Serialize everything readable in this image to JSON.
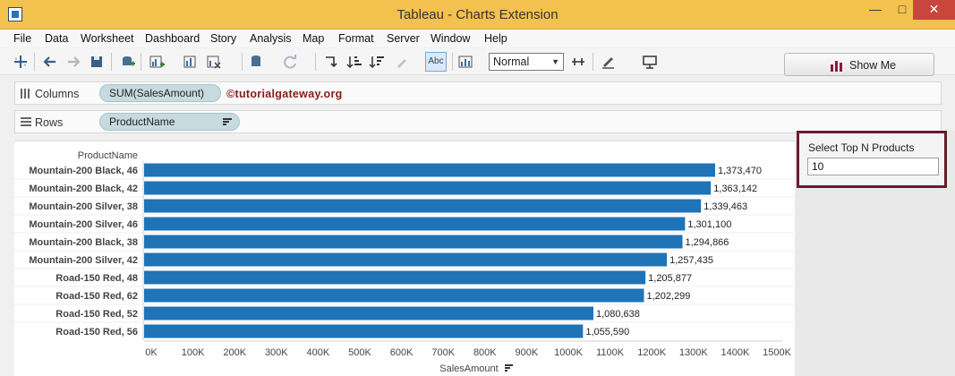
{
  "window": {
    "title": "Tableau - Charts Extension",
    "controls": {
      "minimize": "—",
      "maximize": "□",
      "close": "✕"
    }
  },
  "menu": [
    "File",
    "Data",
    "Worksheet",
    "Dashboard",
    "Story",
    "Analysis",
    "Map",
    "Format",
    "Server",
    "Window",
    "Help"
  ],
  "toolbar": {
    "abc_label": "Abc",
    "fit_value": "Normal",
    "show_me_label": "Show Me"
  },
  "shelves": {
    "columns_label": "Columns",
    "columns_pill": "SUM(SalesAmount)",
    "rows_label": "Rows",
    "rows_pill": "ProductName",
    "watermark": "©tutorialgateway.org"
  },
  "parameter": {
    "title": "Select Top N Products",
    "value": "10"
  },
  "colors": {
    "bar": "#1f73b7",
    "titlebar": "#f2c14e",
    "param_border": "#6b1b2b"
  },
  "chart_data": {
    "type": "bar",
    "orientation": "horizontal",
    "row_header": "ProductName",
    "xlabel": "SalesAmount",
    "categories": [
      "Mountain-200 Black, 46",
      "Mountain-200 Black, 42",
      "Mountain-200 Silver, 38",
      "Mountain-200 Silver, 46",
      "Mountain-200 Black, 38",
      "Mountain-200 Silver, 42",
      "Road-150 Red, 48",
      "Road-150 Red, 62",
      "Road-150 Red, 52",
      "Road-150 Red, 56"
    ],
    "values": [
      1373470,
      1363142,
      1339463,
      1301100,
      1294866,
      1257435,
      1205877,
      1202299,
      1080638,
      1055590
    ],
    "value_labels": [
      "1,373,470",
      "1,363,142",
      "1,339,463",
      "1,301,100",
      "1,294,866",
      "1,257,435",
      "1,205,877",
      "1,202,299",
      "1,080,638",
      "1,055,590"
    ],
    "xlim": [
      0,
      1500000
    ],
    "xticks": [
      0,
      100000,
      200000,
      300000,
      400000,
      500000,
      600000,
      700000,
      800000,
      900000,
      1000000,
      1100000,
      1200000,
      1300000,
      1400000,
      1500000
    ],
    "xtick_labels": [
      "0K",
      "100K",
      "200K",
      "300K",
      "400K",
      "500K",
      "600K",
      "700K",
      "800K",
      "900K",
      "1000K",
      "1100K",
      "1200K",
      "1300K",
      "1400K",
      "1500K"
    ]
  }
}
